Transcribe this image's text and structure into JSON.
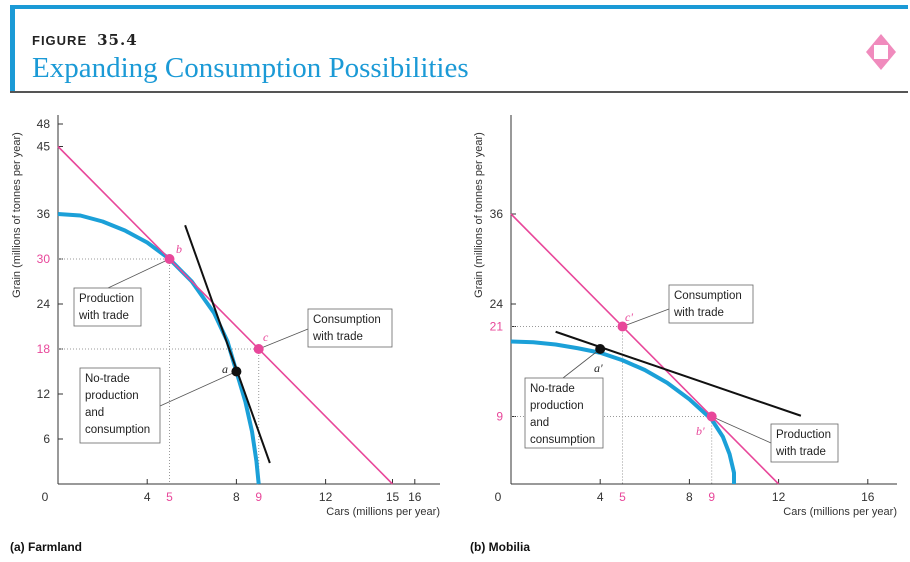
{
  "header": {
    "figure_word": "FIGURE",
    "figure_number": "35.4",
    "title": "Expanding Consumption Possibilities",
    "icon": "diamond-icon"
  },
  "colors": {
    "accent": "#1b9ad6",
    "pink": "#e8479a",
    "ppf": "#1ba0d8",
    "black": "#111111"
  },
  "chart_data": [
    {
      "type": "line",
      "caption": "(a) Farmland",
      "xlabel": "Cars (millions per year)",
      "ylabel": "Grain (millions of tonnes per year)",
      "xlim": [
        0,
        17
      ],
      "ylim": [
        0,
        49
      ],
      "xticks": [
        {
          "v": 0,
          "t": "0"
        },
        {
          "v": 4,
          "t": "4"
        },
        {
          "v": 5,
          "t": "5",
          "hl": true
        },
        {
          "v": 8,
          "t": "8"
        },
        {
          "v": 9,
          "t": "9",
          "hl": true
        },
        {
          "v": 12,
          "t": "12"
        },
        {
          "v": 15,
          "t": "15"
        },
        {
          "v": 16,
          "t": "16"
        }
      ],
      "yticks": [
        {
          "v": 6,
          "t": "6"
        },
        {
          "v": 12,
          "t": "12"
        },
        {
          "v": 18,
          "t": "18",
          "hl": true
        },
        {
          "v": 24,
          "t": "24"
        },
        {
          "v": 30,
          "t": "30",
          "hl": true
        },
        {
          "v": 36,
          "t": "36"
        },
        {
          "v": 45,
          "t": "45"
        },
        {
          "v": 48,
          "t": "48"
        }
      ],
      "ppf": [
        [
          0,
          36
        ],
        [
          1,
          35.8
        ],
        [
          2,
          35
        ],
        [
          3,
          33.8
        ],
        [
          4,
          32.2
        ],
        [
          5,
          30
        ],
        [
          6,
          27
        ],
        [
          7,
          22.8
        ],
        [
          7.6,
          19
        ],
        [
          8,
          15
        ],
        [
          8.4,
          11
        ],
        [
          8.7,
          7
        ],
        [
          8.9,
          3
        ],
        [
          9,
          0
        ]
      ],
      "trade_line": [
        [
          0,
          45
        ],
        [
          15,
          0
        ]
      ],
      "tangent_line": [
        [
          5.7,
          34.5
        ],
        [
          9.5,
          2.8
        ]
      ],
      "points": [
        {
          "label": "b",
          "x": 5,
          "y": 30,
          "color": "pink",
          "guides": true
        },
        {
          "label": "c",
          "x": 9,
          "y": 18,
          "color": "pink",
          "guides": true
        },
        {
          "label": "a",
          "x": 8,
          "y": 15,
          "color": "black",
          "guides": false
        }
      ],
      "annotations": [
        {
          "lines": [
            "Production",
            "with trade"
          ],
          "target": "b"
        },
        {
          "lines": [
            "Consumption",
            "with trade"
          ],
          "target": "c"
        },
        {
          "lines": [
            "No-trade",
            "production",
            "and",
            "consumption"
          ],
          "target": "a"
        }
      ]
    },
    {
      "type": "line",
      "caption": "(b) Mobilia",
      "xlabel": "Cars (millions per year)",
      "ylabel": "Grain (millions of tonnes per year)",
      "xlim": [
        0,
        17.4
      ],
      "ylim": [
        0,
        49
      ],
      "xticks": [
        {
          "v": 0,
          "t": "0"
        },
        {
          "v": 4,
          "t": "4"
        },
        {
          "v": 5,
          "t": "5",
          "hl": true
        },
        {
          "v": 8,
          "t": "8"
        },
        {
          "v": 9,
          "t": "9",
          "hl": true
        },
        {
          "v": 12,
          "t": "12"
        },
        {
          "v": 16,
          "t": "16"
        }
      ],
      "yticks": [
        {
          "v": 9,
          "t": "9",
          "hl": true
        },
        {
          "v": 21,
          "t": "21",
          "hl": true
        },
        {
          "v": 24,
          "t": "24"
        },
        {
          "v": 36,
          "t": "36"
        }
      ],
      "ppf": [
        [
          0,
          19
        ],
        [
          1,
          18.9
        ],
        [
          2,
          18.6
        ],
        [
          3,
          18.1
        ],
        [
          4,
          17.5
        ],
        [
          5,
          16.5
        ],
        [
          6,
          15.2
        ],
        [
          7,
          13.5
        ],
        [
          8,
          11.3
        ],
        [
          9,
          8.6
        ],
        [
          9.5,
          6.3
        ],
        [
          9.8,
          4
        ],
        [
          10,
          1.5
        ],
        [
          10,
          0
        ]
      ],
      "trade_line": [
        [
          0,
          36
        ],
        [
          12,
          0
        ]
      ],
      "tangent_line": [
        [
          2,
          20.3
        ],
        [
          13,
          9.1
        ]
      ],
      "points": [
        {
          "label": "c'",
          "x": 5,
          "y": 21,
          "color": "pink",
          "guides": true
        },
        {
          "label": "a'",
          "x": 4,
          "y": 18,
          "color": "black",
          "guides": false
        },
        {
          "label": "b'",
          "x": 9,
          "y": 9,
          "color": "pink",
          "guides": true
        }
      ],
      "annotations": [
        {
          "lines": [
            "Consumption",
            "with trade"
          ],
          "target": "c'"
        },
        {
          "lines": [
            "No-trade",
            "production",
            "and",
            "consumption"
          ],
          "target": "a'"
        },
        {
          "lines": [
            "Production",
            "with trade"
          ],
          "target": "b'"
        }
      ]
    }
  ]
}
